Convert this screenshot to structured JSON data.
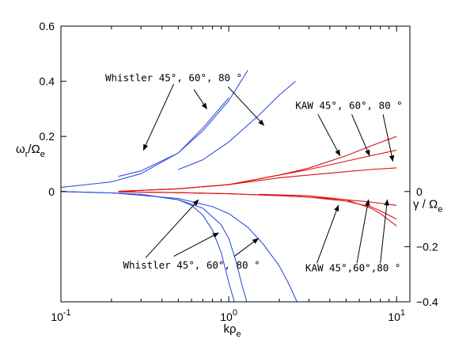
{
  "chart_data": {
    "type": "line",
    "xscale": "log",
    "xlim": [
      0.1,
      12
    ],
    "x_ticks": [
      {
        "base": "10",
        "exp": "-1"
      },
      {
        "base": "10",
        "exp": "0"
      },
      {
        "base": "10",
        "exp": "1"
      }
    ],
    "xlabel": {
      "main": "k",
      "sub_greek": "ρ",
      "sub": "e"
    },
    "left_axis": {
      "label": {
        "num": "ω",
        "num_sub": "r",
        "den": "Ω",
        "den_sub": "e"
      },
      "ylim": [
        -0.4,
        0.6
      ],
      "ticks": [
        "0",
        "0.2",
        "0.4",
        "0.6"
      ]
    },
    "right_axis": {
      "label": {
        "num": "γ",
        "den": "Ω",
        "den_sub": "e"
      },
      "ylim": [
        -0.4,
        0.6
      ],
      "ticks": [
        "0",
        "−0.2",
        "−0.4"
      ]
    },
    "colors": {
      "whistler": "#3050e0",
      "kaw": "#dd1010",
      "axes": "#000000"
    },
    "series": [
      {
        "group": "whistler",
        "component": "real",
        "x": [
          0.1,
          0.2,
          0.3,
          0.5,
          0.7,
          1.0
        ],
        "y": [
          0.015,
          0.035,
          0.065,
          0.14,
          0.23,
          0.34
        ]
      },
      {
        "group": "whistler",
        "component": "real",
        "x": [
          0.22,
          0.3,
          0.5,
          0.7,
          1.0,
          1.3
        ],
        "y": [
          0.055,
          0.075,
          0.14,
          0.22,
          0.33,
          0.44
        ]
      },
      {
        "group": "whistler",
        "component": "real",
        "x": [
          0.5,
          0.7,
          1.0,
          1.5,
          2.0,
          2.5
        ],
        "y": [
          0.08,
          0.115,
          0.18,
          0.275,
          0.35,
          0.4
        ]
      },
      {
        "group": "whistler",
        "component": "imaginary",
        "x": [
          0.1,
          0.2,
          0.3,
          0.5,
          0.6,
          0.7,
          0.8,
          0.9,
          1.0,
          1.08
        ],
        "y": [
          0.0,
          -0.005,
          -0.01,
          -0.03,
          -0.05,
          -0.085,
          -0.14,
          -0.22,
          -0.33,
          -0.4
        ]
      },
      {
        "group": "whistler",
        "component": "imaginary",
        "x": [
          0.1,
          0.2,
          0.3,
          0.5,
          0.7,
          0.9,
          1.0,
          1.1,
          1.2,
          1.28
        ],
        "y": [
          0.0,
          -0.005,
          -0.01,
          -0.03,
          -0.06,
          -0.12,
          -0.17,
          -0.25,
          -0.34,
          -0.4
        ]
      },
      {
        "group": "whistler",
        "component": "imaginary",
        "x": [
          0.2,
          0.5,
          0.8,
          1.0,
          1.3,
          1.6,
          2.0,
          2.3,
          2.55
        ],
        "y": [
          -0.005,
          -0.025,
          -0.055,
          -0.08,
          -0.13,
          -0.19,
          -0.27,
          -0.34,
          -0.4
        ]
      },
      {
        "group": "kaw",
        "component": "real",
        "x": [
          0.22,
          0.5,
          1.0,
          2.0,
          3.0,
          5.0,
          7.0,
          10.0
        ],
        "y": [
          0.001,
          0.01,
          0.025,
          0.06,
          0.085,
          0.13,
          0.165,
          0.2
        ]
      },
      {
        "group": "kaw",
        "component": "real",
        "x": [
          0.22,
          0.5,
          1.0,
          2.0,
          3.0,
          5.0,
          7.0,
          10.0
        ],
        "y": [
          0.001,
          0.01,
          0.025,
          0.06,
          0.08,
          0.11,
          0.13,
          0.15
        ]
      },
      {
        "group": "kaw",
        "component": "real",
        "x": [
          0.22,
          0.5,
          1.0,
          2.0,
          3.0,
          5.0,
          7.0,
          10.0
        ],
        "y": [
          0.001,
          0.01,
          0.025,
          0.05,
          0.06,
          0.072,
          0.08,
          0.086
        ]
      },
      {
        "group": "kaw",
        "component": "imaginary",
        "x": [
          0.22,
          0.5,
          1.0,
          2.0,
          3.0,
          5.0,
          7.0,
          10.0
        ],
        "y": [
          -0.001,
          -0.004,
          -0.008,
          -0.015,
          -0.02,
          -0.03,
          -0.038,
          -0.05
        ]
      },
      {
        "group": "kaw",
        "component": "imaginary",
        "x": [
          0.22,
          0.5,
          1.0,
          2.0,
          3.0,
          5.0,
          7.0,
          8.0,
          10.0
        ],
        "y": [
          -0.001,
          -0.004,
          -0.008,
          -0.015,
          -0.02,
          -0.035,
          -0.055,
          -0.07,
          -0.1
        ]
      },
      {
        "group": "kaw",
        "component": "imaginary",
        "x": [
          1.5,
          3.0,
          5.0,
          7.0,
          8.0,
          10.0
        ],
        "y": [
          -0.01,
          -0.015,
          -0.03,
          -0.06,
          -0.08,
          -0.125
        ]
      }
    ],
    "annotations": [
      {
        "id": "whistler-real",
        "label": "Whistler 45°, 60°, 80 °",
        "anchor": [
          0.47,
          0.4
        ],
        "arrows": [
          {
            "from": [
              0.47,
              0.39
            ],
            "to": [
              0.31,
              0.15
            ]
          },
          {
            "from": [
              0.62,
              0.37
            ],
            "to": [
              0.74,
              0.3
            ]
          },
          {
            "from": [
              0.99,
              0.38
            ],
            "to": [
              1.62,
              0.24
            ]
          }
        ]
      },
      {
        "id": "kaw-real",
        "label": "KAW 45°, 60°, 80 °",
        "anchor": [
          5.2,
          0.3
        ],
        "arrows": [
          {
            "from": [
              3.4,
              0.28
            ],
            "to": [
              4.6,
              0.13
            ]
          },
          {
            "from": [
              5.4,
              0.28
            ],
            "to": [
              6.9,
              0.13
            ]
          },
          {
            "from": [
              8.3,
              0.28
            ],
            "to": [
              9.5,
              0.11
            ]
          }
        ]
      },
      {
        "id": "whistler-imag",
        "label": "Whistler 45°, 60°, 80 °",
        "anchor": [
          0.6,
          -0.28
        ],
        "arrows": [
          {
            "from": [
              0.32,
              -0.24
            ],
            "to": [
              0.66,
              -0.03
            ]
          },
          {
            "from": [
              0.47,
              -0.235
            ],
            "to": [
              0.87,
              -0.15
            ]
          },
          {
            "from": [
              1.08,
              -0.235
            ],
            "to": [
              1.5,
              -0.17
            ]
          }
        ]
      },
      {
        "id": "kaw-imag",
        "label": "KAW 45°,60°,80 °",
        "anchor": [
          5.5,
          -0.29
        ],
        "arrows": [
          {
            "from": [
              3.35,
              -0.26
            ],
            "to": [
              4.5,
              -0.05
            ]
          },
          {
            "from": [
              5.8,
              -0.26
            ],
            "to": [
              6.8,
              -0.03
            ]
          },
          {
            "from": [
              8.0,
              -0.26
            ],
            "to": [
              8.8,
              -0.03
            ]
          }
        ]
      }
    ]
  }
}
